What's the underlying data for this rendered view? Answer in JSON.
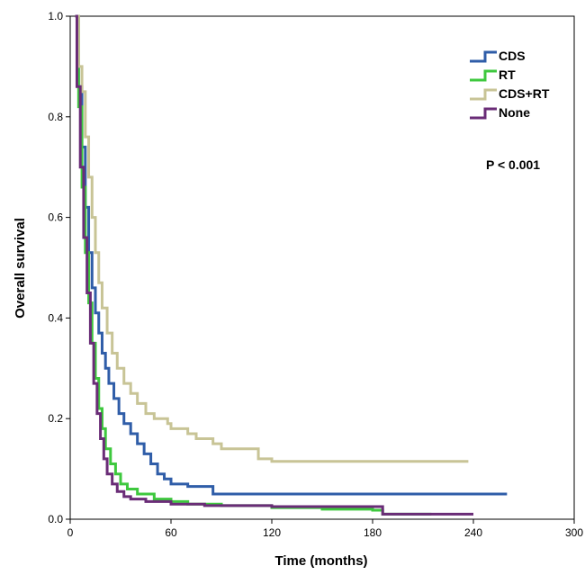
{
  "chart_data": {
    "type": "line",
    "step": true,
    "xlabel": "Time (months)",
    "ylabel": "Overall survival",
    "xlim": [
      0,
      300
    ],
    "ylim": [
      0,
      1.0
    ],
    "xticks": [
      0,
      60,
      120,
      180,
      240,
      300
    ],
    "xtick_labels": [
      "0",
      "60",
      "120",
      "180",
      "240",
      "300"
    ],
    "yticks": [
      0,
      0.2,
      0.4,
      0.6,
      0.8,
      1.0
    ],
    "ytick_labels": [
      "0.0",
      "0.2",
      "0.4",
      "0.6",
      "0.8",
      "1.0"
    ],
    "grid": false,
    "legend_position": "top-right",
    "annotation": "P < 0.001",
    "series": [
      {
        "name": "CDS",
        "color": "#2f5da8",
        "points": [
          [
            3,
            1.0
          ],
          [
            5,
            0.86
          ],
          [
            7,
            0.74
          ],
          [
            9,
            0.62
          ],
          [
            11,
            0.53
          ],
          [
            13,
            0.46
          ],
          [
            15,
            0.41
          ],
          [
            17,
            0.37
          ],
          [
            19,
            0.33
          ],
          [
            21,
            0.3
          ],
          [
            23,
            0.27
          ],
          [
            26,
            0.24
          ],
          [
            29,
            0.21
          ],
          [
            32,
            0.19
          ],
          [
            36,
            0.17
          ],
          [
            40,
            0.15
          ],
          [
            44,
            0.13
          ],
          [
            48,
            0.11
          ],
          [
            52,
            0.09
          ],
          [
            56,
            0.08
          ],
          [
            60,
            0.07
          ],
          [
            70,
            0.065
          ],
          [
            85,
            0.05
          ],
          [
            120,
            0.05
          ],
          [
            180,
            0.05
          ],
          [
            260,
            0.05
          ]
        ]
      },
      {
        "name": "RT",
        "color": "#3ec83e",
        "points": [
          [
            3,
            1.0
          ],
          [
            5,
            0.82
          ],
          [
            7,
            0.66
          ],
          [
            9,
            0.53
          ],
          [
            11,
            0.43
          ],
          [
            13,
            0.35
          ],
          [
            15,
            0.28
          ],
          [
            17,
            0.22
          ],
          [
            19,
            0.18
          ],
          [
            21,
            0.14
          ],
          [
            24,
            0.11
          ],
          [
            27,
            0.09
          ],
          [
            30,
            0.07
          ],
          [
            34,
            0.06
          ],
          [
            40,
            0.05
          ],
          [
            50,
            0.04
          ],
          [
            60,
            0.035
          ],
          [
            70,
            0.03
          ],
          [
            90,
            0.027
          ],
          [
            120,
            0.023
          ],
          [
            150,
            0.02
          ],
          [
            180,
            0.018
          ],
          [
            186,
            0.01
          ],
          [
            215,
            0.01
          ]
        ]
      },
      {
        "name": "CDS+RT",
        "color": "#c8c496",
        "points": [
          [
            3,
            1.0
          ],
          [
            5,
            0.9
          ],
          [
            7,
            0.85
          ],
          [
            9,
            0.76
          ],
          [
            11,
            0.68
          ],
          [
            13,
            0.6
          ],
          [
            15,
            0.53
          ],
          [
            17,
            0.47
          ],
          [
            19,
            0.42
          ],
          [
            22,
            0.37
          ],
          [
            25,
            0.33
          ],
          [
            28,
            0.3
          ],
          [
            32,
            0.27
          ],
          [
            36,
            0.25
          ],
          [
            40,
            0.23
          ],
          [
            45,
            0.21
          ],
          [
            50,
            0.2
          ],
          [
            58,
            0.19
          ],
          [
            60,
            0.18
          ],
          [
            70,
            0.17
          ],
          [
            75,
            0.16
          ],
          [
            85,
            0.15
          ],
          [
            90,
            0.14
          ],
          [
            105,
            0.14
          ],
          [
            112,
            0.12
          ],
          [
            120,
            0.115
          ],
          [
            180,
            0.115
          ],
          [
            237,
            0.115
          ]
        ]
      },
      {
        "name": "None",
        "color": "#6a2c77",
        "points": [
          [
            3,
            1.0
          ],
          [
            4,
            0.86
          ],
          [
            6,
            0.7
          ],
          [
            8,
            0.56
          ],
          [
            10,
            0.45
          ],
          [
            12,
            0.35
          ],
          [
            14,
            0.27
          ],
          [
            16,
            0.21
          ],
          [
            18,
            0.16
          ],
          [
            20,
            0.12
          ],
          [
            22,
            0.09
          ],
          [
            25,
            0.07
          ],
          [
            28,
            0.055
          ],
          [
            32,
            0.045
          ],
          [
            36,
            0.04
          ],
          [
            45,
            0.035
          ],
          [
            60,
            0.03
          ],
          [
            80,
            0.027
          ],
          [
            120,
            0.025
          ],
          [
            150,
            0.025
          ],
          [
            184,
            0.025
          ],
          [
            186,
            0.01
          ],
          [
            240,
            0.01
          ]
        ]
      }
    ]
  }
}
